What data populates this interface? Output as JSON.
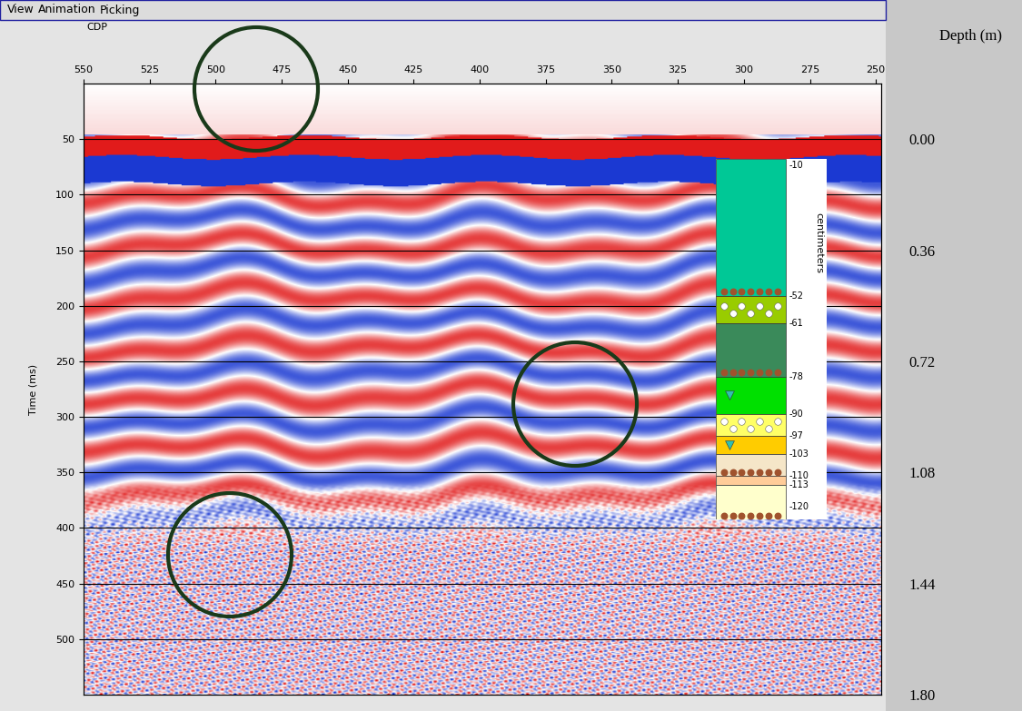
{
  "menu": [
    "View",
    "Animation",
    "Picking"
  ],
  "chart_data": {
    "type": "radargram",
    "x_label": "CDP",
    "y_label": "Time (ms)",
    "y2_label": "Depth (m)",
    "xlim": [
      550,
      248
    ],
    "xticks": [
      550,
      525,
      500,
      475,
      450,
      425,
      400,
      375,
      350,
      325,
      300,
      275,
      250
    ],
    "ylim": [
      550,
      0
    ],
    "yticks": [
      50,
      100,
      150,
      200,
      250,
      300,
      350,
      400,
      450,
      500
    ],
    "y2lim": [
      1.8,
      -0.18
    ],
    "y2ticks": [
      {
        "value": 0,
        "label": "0.00"
      },
      {
        "value": 0.36,
        "label": "0.36"
      },
      {
        "value": 0.72,
        "label": "0.72"
      },
      {
        "value": 1.08,
        "label": "1.08"
      },
      {
        "value": 1.44,
        "label": "1.44"
      },
      {
        "value": 1.8,
        "label": "1.80"
      }
    ],
    "grid": true
  },
  "column": {
    "label": "centimeters",
    "ylim": [
      -124,
      -8
    ],
    "ticks": [
      -10,
      -52,
      -61,
      -78,
      -90,
      -97,
      -103,
      -110,
      -113,
      -120
    ],
    "layers": [
      {
        "top": -8,
        "bottom": -52,
        "color": "#00c896",
        "marker": "dots"
      },
      {
        "top": -52,
        "bottom": -61,
        "color": "#99cc00",
        "marker": "circles"
      },
      {
        "top": -61,
        "bottom": -78,
        "color": "#3a8a5a",
        "marker": "dots"
      },
      {
        "top": -78,
        "bottom": -90,
        "color": "#00e000",
        "marker": "cup"
      },
      {
        "top": -90,
        "bottom": -97,
        "color": "#ffff66",
        "marker": "circles"
      },
      {
        "top": -97,
        "bottom": -103,
        "color": "#ffcc00",
        "marker": "cup"
      },
      {
        "top": -103,
        "bottom": -110,
        "color": "#f5e6c8",
        "marker": "dots"
      },
      {
        "top": -110,
        "bottom": -113,
        "color": "#ffcc99",
        "marker": "none"
      },
      {
        "top": -113,
        "bottom": -124,
        "color": "#ffffcc",
        "marker": "dots"
      }
    ]
  }
}
